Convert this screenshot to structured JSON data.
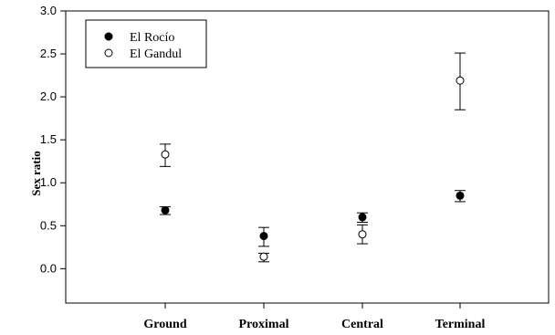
{
  "chart_data": {
    "type": "scatter",
    "title": "",
    "xlabel": "",
    "ylabel": "Sex ratio",
    "categories": [
      "Ground",
      "Proximal",
      "Central",
      "Terminal"
    ],
    "ylim": [
      -0.4,
      3.0
    ],
    "yticks": [
      0.0,
      0.5,
      1.0,
      1.5,
      2.0,
      2.5,
      3.0
    ],
    "ytick_labels": [
      "0.0",
      "0.5",
      "1.0",
      "1.5",
      "2.0",
      "2.5",
      "3.0"
    ],
    "grid": false,
    "legend_position": "top-left",
    "series": [
      {
        "name": "El Rocío",
        "marker": "filled-circle",
        "color": "#000000",
        "values": [
          0.68,
          0.38,
          0.6,
          0.85
        ],
        "error_low": [
          0.63,
          0.26,
          0.54,
          0.78
        ],
        "error_high": [
          0.72,
          0.48,
          0.65,
          0.91
        ]
      },
      {
        "name": "El Gandul",
        "marker": "open-circle",
        "color": "#000000",
        "values": [
          1.33,
          0.14,
          0.4,
          2.19
        ],
        "error_low": [
          1.19,
          0.08,
          0.29,
          1.85
        ],
        "error_high": [
          1.45,
          0.18,
          0.51,
          2.51
        ]
      }
    ]
  }
}
